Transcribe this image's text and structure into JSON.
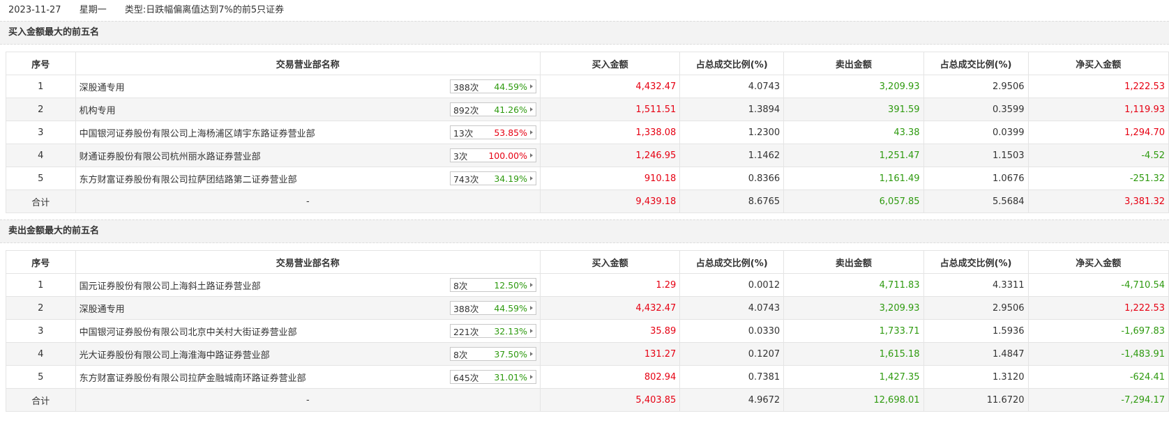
{
  "top": {
    "date": "2023-11-27",
    "weekday": "星期一",
    "type_label": "类型:",
    "type_value": "日跌幅偏离值达到7%的前5只证券"
  },
  "buy_section": {
    "title": "买入金额最大的前五名",
    "headers": [
      "序号",
      "交易营业部名称",
      "买入金额",
      "占总成交比例(%)",
      "卖出金额",
      "占总成交比例(%)",
      "净买入金额"
    ],
    "rows": [
      {
        "no": "1",
        "name": "深股通专用",
        "count": "388次",
        "pct": "44.59%",
        "pct_color": "green",
        "buy": "4,432.47",
        "buy_ratio": "4.0743",
        "sell": "3,209.93",
        "sell_ratio": "2.9506",
        "net": "1,222.53",
        "net_color": "red"
      },
      {
        "no": "2",
        "name": "机构专用",
        "count": "892次",
        "pct": "41.26%",
        "pct_color": "green",
        "buy": "1,511.51",
        "buy_ratio": "1.3894",
        "sell": "391.59",
        "sell_ratio": "0.3599",
        "net": "1,119.93",
        "net_color": "red"
      },
      {
        "no": "3",
        "name": "中国银河证券股份有限公司上海杨浦区靖宇东路证券营业部",
        "count": "13次",
        "pct": "53.85%",
        "pct_color": "red",
        "buy": "1,338.08",
        "buy_ratio": "1.2300",
        "sell": "43.38",
        "sell_ratio": "0.0399",
        "net": "1,294.70",
        "net_color": "red"
      },
      {
        "no": "4",
        "name": "财通证券股份有限公司杭州丽水路证券营业部",
        "count": "3次",
        "pct": "100.00%",
        "pct_color": "red",
        "buy": "1,246.95",
        "buy_ratio": "1.1462",
        "sell": "1,251.47",
        "sell_ratio": "1.1503",
        "net": "-4.52",
        "net_color": "green"
      },
      {
        "no": "5",
        "name": "东方财富证券股份有限公司拉萨团结路第二证券营业部",
        "count": "743次",
        "pct": "34.19%",
        "pct_color": "green",
        "buy": "910.18",
        "buy_ratio": "0.8366",
        "sell": "1,161.49",
        "sell_ratio": "1.0676",
        "net": "-251.32",
        "net_color": "green"
      }
    ],
    "total": {
      "label": "合计",
      "name": "-",
      "buy": "9,439.18",
      "buy_ratio": "8.6765",
      "sell": "6,057.85",
      "sell_ratio": "5.5684",
      "net": "3,381.32",
      "net_color": "red"
    }
  },
  "sell_section": {
    "title": "卖出金额最大的前五名",
    "headers": [
      "序号",
      "交易营业部名称",
      "买入金额",
      "占总成交比例(%)",
      "卖出金额",
      "占总成交比例(%)",
      "净买入金额"
    ],
    "rows": [
      {
        "no": "1",
        "name": "国元证券股份有限公司上海斜土路证券营业部",
        "count": "8次",
        "pct": "12.50%",
        "pct_color": "green",
        "buy": "1.29",
        "buy_ratio": "0.0012",
        "sell": "4,711.83",
        "sell_ratio": "4.3311",
        "net": "-4,710.54",
        "net_color": "green"
      },
      {
        "no": "2",
        "name": "深股通专用",
        "count": "388次",
        "pct": "44.59%",
        "pct_color": "green",
        "buy": "4,432.47",
        "buy_ratio": "4.0743",
        "sell": "3,209.93",
        "sell_ratio": "2.9506",
        "net": "1,222.53",
        "net_color": "red"
      },
      {
        "no": "3",
        "name": "中国银河证券股份有限公司北京中关村大街证券营业部",
        "count": "221次",
        "pct": "32.13%",
        "pct_color": "green",
        "buy": "35.89",
        "buy_ratio": "0.0330",
        "sell": "1,733.71",
        "sell_ratio": "1.5936",
        "net": "-1,697.83",
        "net_color": "green"
      },
      {
        "no": "4",
        "name": "光大证券股份有限公司上海淮海中路证券营业部",
        "count": "8次",
        "pct": "37.50%",
        "pct_color": "green",
        "buy": "131.27",
        "buy_ratio": "0.1207",
        "sell": "1,615.18",
        "sell_ratio": "1.4847",
        "net": "-1,483.91",
        "net_color": "green"
      },
      {
        "no": "5",
        "name": "东方财富证券股份有限公司拉萨金融城南环路证券营业部",
        "count": "645次",
        "pct": "31.01%",
        "pct_color": "green",
        "buy": "802.94",
        "buy_ratio": "0.7381",
        "sell": "1,427.35",
        "sell_ratio": "1.3120",
        "net": "-624.41",
        "net_color": "green"
      }
    ],
    "total": {
      "label": "合计",
      "name": "-",
      "buy": "5,403.85",
      "buy_ratio": "4.9672",
      "sell": "12,698.01",
      "sell_ratio": "11.6720",
      "net": "-7,294.17",
      "net_color": "green"
    }
  },
  "colors": {
    "red": "#e60012",
    "green": "#2e9a0f"
  }
}
